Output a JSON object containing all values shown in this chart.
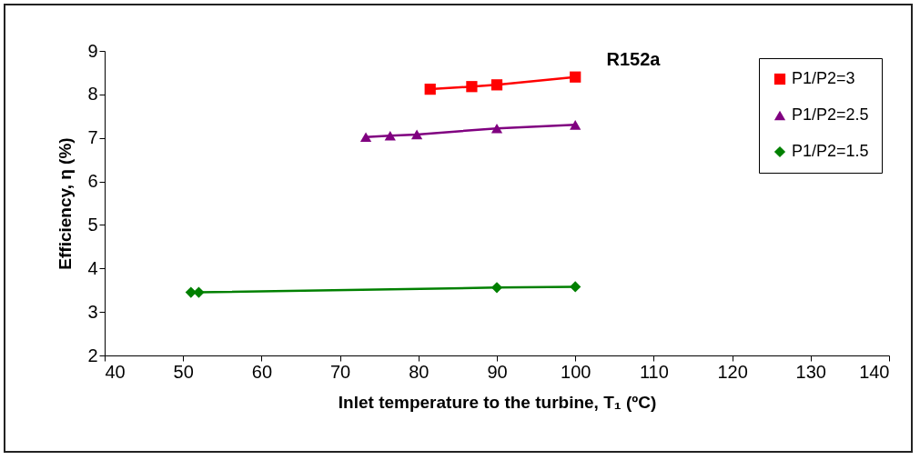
{
  "chart_data": {
    "type": "line",
    "title": "R152a",
    "xlabel": "Inlet temperature to the turbine, T₁ (ºC)",
    "ylabel": "Efficiency, η (%)",
    "xlim": [
      40,
      140
    ],
    "xticks": [
      40,
      50,
      60,
      70,
      80,
      90,
      100,
      110,
      120,
      130,
      140
    ],
    "ylim": [
      2,
      9
    ],
    "yticks": [
      2,
      3,
      4,
      5,
      6,
      7,
      8,
      9
    ],
    "grid": false,
    "legend": "top right",
    "series": [
      {
        "name": "P1/P2=3",
        "color": "#ff0000",
        "marker": "square",
        "x": [
          81.5,
          86.8,
          90,
          100
        ],
        "values": [
          8.12,
          8.18,
          8.22,
          8.4
        ]
      },
      {
        "name": "P1/P2=2.5",
        "color": "#800080",
        "marker": "triangle",
        "x": [
          73.3,
          76.4,
          79.8,
          90,
          100
        ],
        "values": [
          7.02,
          7.05,
          7.08,
          7.22,
          7.3
        ]
      },
      {
        "name": "P1/P2=1.5",
        "color": "#008000",
        "marker": "diamond",
        "x": [
          51,
          52,
          90,
          100
        ],
        "values": [
          3.45,
          3.45,
          3.56,
          3.58
        ]
      }
    ]
  }
}
